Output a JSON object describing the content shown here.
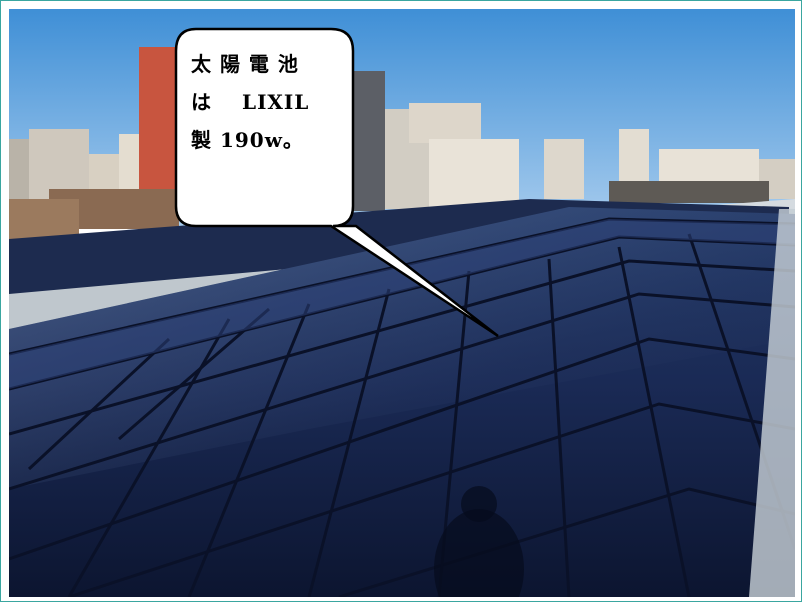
{
  "callout": {
    "line1": "太 陽 電 池",
    "line2_a": "は",
    "line2_b": "LIXIL",
    "line3": "製 190w。"
  },
  "colors": {
    "frame_border": "#3aa6a0",
    "sky": "#7fb7e6",
    "panel_dark": "#0f1a3a",
    "panel_mid": "#1c2c5a",
    "roof_edge": "#c9d2d8"
  },
  "scene": {
    "subject": "rooftop solar panel array",
    "icons": [
      "building-icon",
      "speech-bubble-icon"
    ]
  }
}
